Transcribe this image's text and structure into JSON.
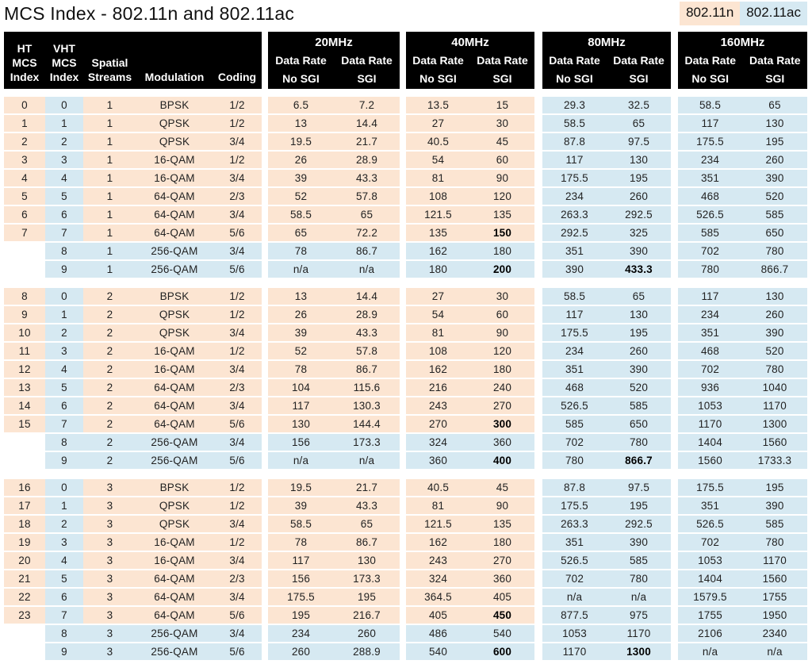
{
  "title": "MCS Index - 802.11n and 802.11ac",
  "legend": {
    "n": {
      "label": "802.11n",
      "color": "#fce5d2"
    },
    "ac": {
      "label": "802.11ac",
      "color": "#d6e9f2"
    }
  },
  "header": {
    "cols": [
      "HT\nMCS\nIndex",
      "VHT\nMCS\nIndex",
      "Spatial\nStreams",
      "Modulation",
      "Coding"
    ],
    "bands": [
      "20MHz",
      "40MHz",
      "80MHz",
      "160MHz"
    ],
    "sub": {
      "data_rate": "Data Rate",
      "no_sgi": "No SGI",
      "sgi": "SGI"
    }
  },
  "groups": [
    {
      "spatial_streams": "1",
      "rows": [
        {
          "ht": "0",
          "vht": "0",
          "ss": "1",
          "mod": "BPSK",
          "coding": "1/2",
          "rates": [
            "6.5",
            "7.2",
            "13.5",
            "15",
            "29.3",
            "32.5",
            "58.5",
            "65"
          ],
          "bold": []
        },
        {
          "ht": "1",
          "vht": "1",
          "ss": "1",
          "mod": "QPSK",
          "coding": "1/2",
          "rates": [
            "13",
            "14.4",
            "27",
            "30",
            "58.5",
            "65",
            "117",
            "130"
          ],
          "bold": []
        },
        {
          "ht": "2",
          "vht": "2",
          "ss": "1",
          "mod": "QPSK",
          "coding": "3/4",
          "rates": [
            "19.5",
            "21.7",
            "40.5",
            "45",
            "87.8",
            "97.5",
            "175.5",
            "195"
          ],
          "bold": []
        },
        {
          "ht": "3",
          "vht": "3",
          "ss": "1",
          "mod": "16-QAM",
          "coding": "1/2",
          "rates": [
            "26",
            "28.9",
            "54",
            "60",
            "117",
            "130",
            "234",
            "260"
          ],
          "bold": []
        },
        {
          "ht": "4",
          "vht": "4",
          "ss": "1",
          "mod": "16-QAM",
          "coding": "3/4",
          "rates": [
            "39",
            "43.3",
            "81",
            "90",
            "175.5",
            "195",
            "351",
            "390"
          ],
          "bold": []
        },
        {
          "ht": "5",
          "vht": "5",
          "ss": "1",
          "mod": "64-QAM",
          "coding": "2/3",
          "rates": [
            "52",
            "57.8",
            "108",
            "120",
            "234",
            "260",
            "468",
            "520"
          ],
          "bold": []
        },
        {
          "ht": "6",
          "vht": "6",
          "ss": "1",
          "mod": "64-QAM",
          "coding": "3/4",
          "rates": [
            "58.5",
            "65",
            "121.5",
            "135",
            "263.3",
            "292.5",
            "526.5",
            "585"
          ],
          "bold": []
        },
        {
          "ht": "7",
          "vht": "7",
          "ss": "1",
          "mod": "64-QAM",
          "coding": "5/6",
          "rates": [
            "65",
            "72.2",
            "135",
            "150",
            "292.5",
            "325",
            "585",
            "650"
          ],
          "bold": [
            3
          ]
        },
        {
          "ht": "",
          "vht": "8",
          "ss": "1",
          "mod": "256-QAM",
          "coding": "3/4",
          "rates": [
            "78",
            "86.7",
            "162",
            "180",
            "351",
            "390",
            "702",
            "780"
          ],
          "bold": []
        },
        {
          "ht": "",
          "vht": "9",
          "ss": "1",
          "mod": "256-QAM",
          "coding": "5/6",
          "rates": [
            "n/a",
            "n/a",
            "180",
            "200",
            "390",
            "433.3",
            "780",
            "866.7"
          ],
          "bold": [
            3,
            5
          ]
        }
      ]
    },
    {
      "spatial_streams": "2",
      "rows": [
        {
          "ht": "8",
          "vht": "0",
          "ss": "2",
          "mod": "BPSK",
          "coding": "1/2",
          "rates": [
            "13",
            "14.4",
            "27",
            "30",
            "58.5",
            "65",
            "117",
            "130"
          ],
          "bold": []
        },
        {
          "ht": "9",
          "vht": "1",
          "ss": "2",
          "mod": "QPSK",
          "coding": "1/2",
          "rates": [
            "26",
            "28.9",
            "54",
            "60",
            "117",
            "130",
            "234",
            "260"
          ],
          "bold": []
        },
        {
          "ht": "10",
          "vht": "2",
          "ss": "2",
          "mod": "QPSK",
          "coding": "3/4",
          "rates": [
            "39",
            "43.3",
            "81",
            "90",
            "175.5",
            "195",
            "351",
            "390"
          ],
          "bold": []
        },
        {
          "ht": "11",
          "vht": "3",
          "ss": "2",
          "mod": "16-QAM",
          "coding": "1/2",
          "rates": [
            "52",
            "57.8",
            "108",
            "120",
            "234",
            "260",
            "468",
            "520"
          ],
          "bold": []
        },
        {
          "ht": "12",
          "vht": "4",
          "ss": "2",
          "mod": "16-QAM",
          "coding": "3/4",
          "rates": [
            "78",
            "86.7",
            "162",
            "180",
            "351",
            "390",
            "702",
            "780"
          ],
          "bold": []
        },
        {
          "ht": "13",
          "vht": "5",
          "ss": "2",
          "mod": "64-QAM",
          "coding": "2/3",
          "rates": [
            "104",
            "115.6",
            "216",
            "240",
            "468",
            "520",
            "936",
            "1040"
          ],
          "bold": []
        },
        {
          "ht": "14",
          "vht": "6",
          "ss": "2",
          "mod": "64-QAM",
          "coding": "3/4",
          "rates": [
            "117",
            "130.3",
            "243",
            "270",
            "526.5",
            "585",
            "1053",
            "1170"
          ],
          "bold": []
        },
        {
          "ht": "15",
          "vht": "7",
          "ss": "2",
          "mod": "64-QAM",
          "coding": "5/6",
          "rates": [
            "130",
            "144.4",
            "270",
            "300",
            "585",
            "650",
            "1170",
            "1300"
          ],
          "bold": [
            3
          ]
        },
        {
          "ht": "",
          "vht": "8",
          "ss": "2",
          "mod": "256-QAM",
          "coding": "3/4",
          "rates": [
            "156",
            "173.3",
            "324",
            "360",
            "702",
            "780",
            "1404",
            "1560"
          ],
          "bold": []
        },
        {
          "ht": "",
          "vht": "9",
          "ss": "2",
          "mod": "256-QAM",
          "coding": "5/6",
          "rates": [
            "n/a",
            "n/a",
            "360",
            "400",
            "780",
            "866.7",
            "1560",
            "1733.3"
          ],
          "bold": [
            3,
            5
          ]
        }
      ]
    },
    {
      "spatial_streams": "3",
      "rows": [
        {
          "ht": "16",
          "vht": "0",
          "ss": "3",
          "mod": "BPSK",
          "coding": "1/2",
          "rates": [
            "19.5",
            "21.7",
            "40.5",
            "45",
            "87.8",
            "97.5",
            "175.5",
            "195"
          ],
          "bold": []
        },
        {
          "ht": "17",
          "vht": "1",
          "ss": "3",
          "mod": "QPSK",
          "coding": "1/2",
          "rates": [
            "39",
            "43.3",
            "81",
            "90",
            "175.5",
            "195",
            "351",
            "390"
          ],
          "bold": []
        },
        {
          "ht": "18",
          "vht": "2",
          "ss": "3",
          "mod": "QPSK",
          "coding": "3/4",
          "rates": [
            "58.5",
            "65",
            "121.5",
            "135",
            "263.3",
            "292.5",
            "526.5",
            "585"
          ],
          "bold": []
        },
        {
          "ht": "19",
          "vht": "3",
          "ss": "3",
          "mod": "16-QAM",
          "coding": "1/2",
          "rates": [
            "78",
            "86.7",
            "162",
            "180",
            "351",
            "390",
            "702",
            "780"
          ],
          "bold": []
        },
        {
          "ht": "20",
          "vht": "4",
          "ss": "3",
          "mod": "16-QAM",
          "coding": "3/4",
          "rates": [
            "117",
            "130",
            "243",
            "270",
            "526.5",
            "585",
            "1053",
            "1170"
          ],
          "bold": []
        },
        {
          "ht": "21",
          "vht": "5",
          "ss": "3",
          "mod": "64-QAM",
          "coding": "2/3",
          "rates": [
            "156",
            "173.3",
            "324",
            "360",
            "702",
            "780",
            "1404",
            "1560"
          ],
          "bold": []
        },
        {
          "ht": "22",
          "vht": "6",
          "ss": "3",
          "mod": "64-QAM",
          "coding": "3/4",
          "rates": [
            "175.5",
            "195",
            "364.5",
            "405",
            "n/a",
            "n/a",
            "1579.5",
            "1755"
          ],
          "bold": []
        },
        {
          "ht": "23",
          "vht": "7",
          "ss": "3",
          "mod": "64-QAM",
          "coding": "5/6",
          "rates": [
            "195",
            "216.7",
            "405",
            "450",
            "877.5",
            "975",
            "1755",
            "1950"
          ],
          "bold": [
            3
          ]
        },
        {
          "ht": "",
          "vht": "8",
          "ss": "3",
          "mod": "256-QAM",
          "coding": "3/4",
          "rates": [
            "234",
            "260",
            "486",
            "540",
            "1053",
            "1170",
            "2106",
            "2340"
          ],
          "bold": []
        },
        {
          "ht": "",
          "vht": "9",
          "ss": "3",
          "mod": "256-QAM",
          "coding": "5/6",
          "rates": [
            "260",
            "288.9",
            "540",
            "600",
            "1170",
            "1300",
            "n/a",
            "n/a"
          ],
          "bold": [
            3,
            5
          ]
        }
      ]
    }
  ]
}
